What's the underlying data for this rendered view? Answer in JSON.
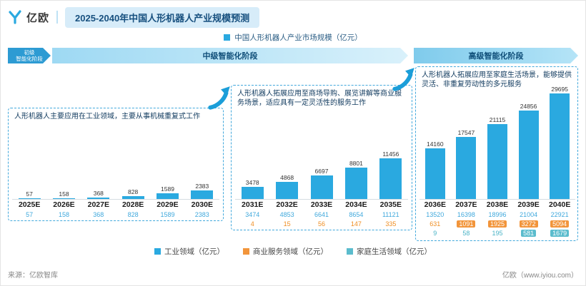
{
  "header": {
    "brand": "亿欧",
    "title": "2025-2040年中国人形机器人产业规模预测"
  },
  "legend_top": "中国人形机器人产业市场规模（亿元）",
  "stages": {
    "primary_line1": "初级",
    "primary_line2": "智能化阶段",
    "intermediate": "中级智能化阶段",
    "advanced": "高级智能化阶段"
  },
  "annotations": {
    "industrial": "人形机器人主要应用在工业领域，主要从事机械重复式工作",
    "commercial": "人形机器人拓展应用至商场导购、展览讲解等商业服务场景，适应具有一定灵活性的服务工作",
    "home": "人形机器人拓展应用至家庭生活场景，能够提供灵活、非重复劳动性的多元服务"
  },
  "chart_data": {
    "type": "bar",
    "title": "中国人形机器人产业市场规模（亿元）",
    "categories": [
      "2025E",
      "2026E",
      "2027E",
      "2028E",
      "2029E",
      "2030E",
      "2031E",
      "2032E",
      "2033E",
      "2034E",
      "2035E",
      "2036E",
      "2037E",
      "2038E",
      "2039E",
      "2040E"
    ],
    "totals": [
      57,
      158,
      368,
      828,
      1589,
      2383,
      3478,
      4868,
      6697,
      8801,
      11456,
      14160,
      17547,
      21115,
      24856,
      29695
    ],
    "bar_color": "#2aa9e0",
    "ylim": [
      0,
      29695
    ],
    "legend_position": "bottom",
    "grid": false,
    "series": [
      {
        "name": "工业领域（亿元）",
        "color": "#2aa9e0",
        "values": [
          57,
          158,
          368,
          828,
          1589,
          2383,
          3474,
          4853,
          6641,
          8654,
          11121,
          13520,
          16398,
          18996,
          21004,
          22921
        ]
      },
      {
        "name": "商业服务领域（亿元）",
        "color": "#f2953b",
        "values": [
          null,
          null,
          null,
          null,
          null,
          null,
          4,
          15,
          56,
          147,
          335,
          631,
          1091,
          1925,
          3272,
          5094
        ]
      },
      {
        "name": "家庭生活领域（亿元）",
        "color": "#5bbccd",
        "values": [
          null,
          null,
          null,
          null,
          null,
          null,
          null,
          null,
          null,
          null,
          null,
          9,
          58,
          195,
          581,
          1679
        ]
      }
    ]
  },
  "footer": {
    "source": "来源：亿欧智库",
    "site": "亿欧（www.iyiou.com）"
  }
}
